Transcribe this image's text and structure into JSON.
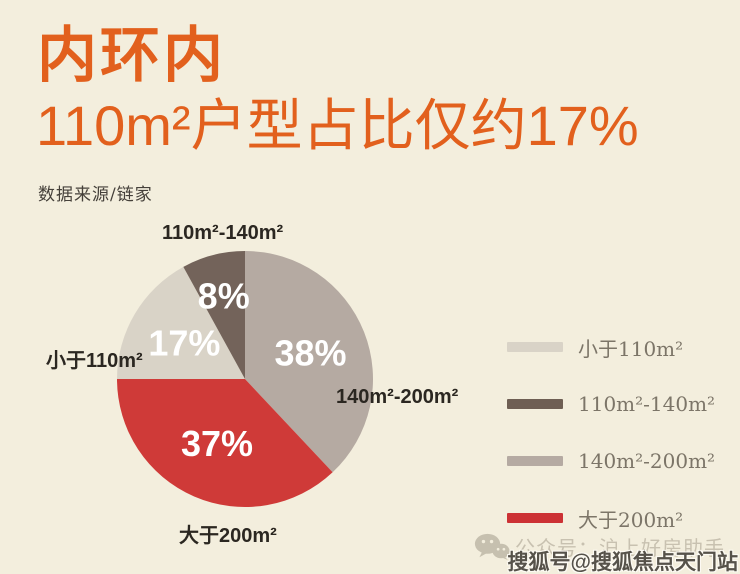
{
  "page": {
    "background_color": "#f3eedd",
    "accent_color": "#e2601d"
  },
  "header": {
    "title": "内环内",
    "subtitle": "110m²户型占比仅约17%",
    "source": "数据来源/链家"
  },
  "chart_data": {
    "type": "pie",
    "start_angle_deg": 0,
    "direction": "clockwise",
    "total": 100,
    "slices": [
      {
        "label": "140m²-200m²",
        "value": 38,
        "percent_label": "38%",
        "color": "#b5aaa2"
      },
      {
        "label": "大于200m²",
        "value": 37,
        "percent_label": "37%",
        "color": "#cf3a38"
      },
      {
        "label": "小于110m²",
        "value": 17,
        "percent_label": "17%",
        "color": "#d9d3c7"
      },
      {
        "label": "110m²-140m²",
        "value": 8,
        "percent_label": "8%",
        "color": "#73635a"
      }
    ],
    "legend_position": "right",
    "legend": [
      {
        "label": "小于110m²",
        "color": "#d9d3c7"
      },
      {
        "label": "110m²-140m²",
        "color": "#6e5e53"
      },
      {
        "label": "140m²-200m²",
        "color": "#b5aaa2"
      },
      {
        "label": "大于200m²",
        "color": "#cc3134"
      }
    ],
    "value_label_color": "#ffffff"
  },
  "footer": {
    "wechat_label": "公众号：沪上好房助手",
    "watermark": "搜狐号@搜狐焦点天门站"
  }
}
